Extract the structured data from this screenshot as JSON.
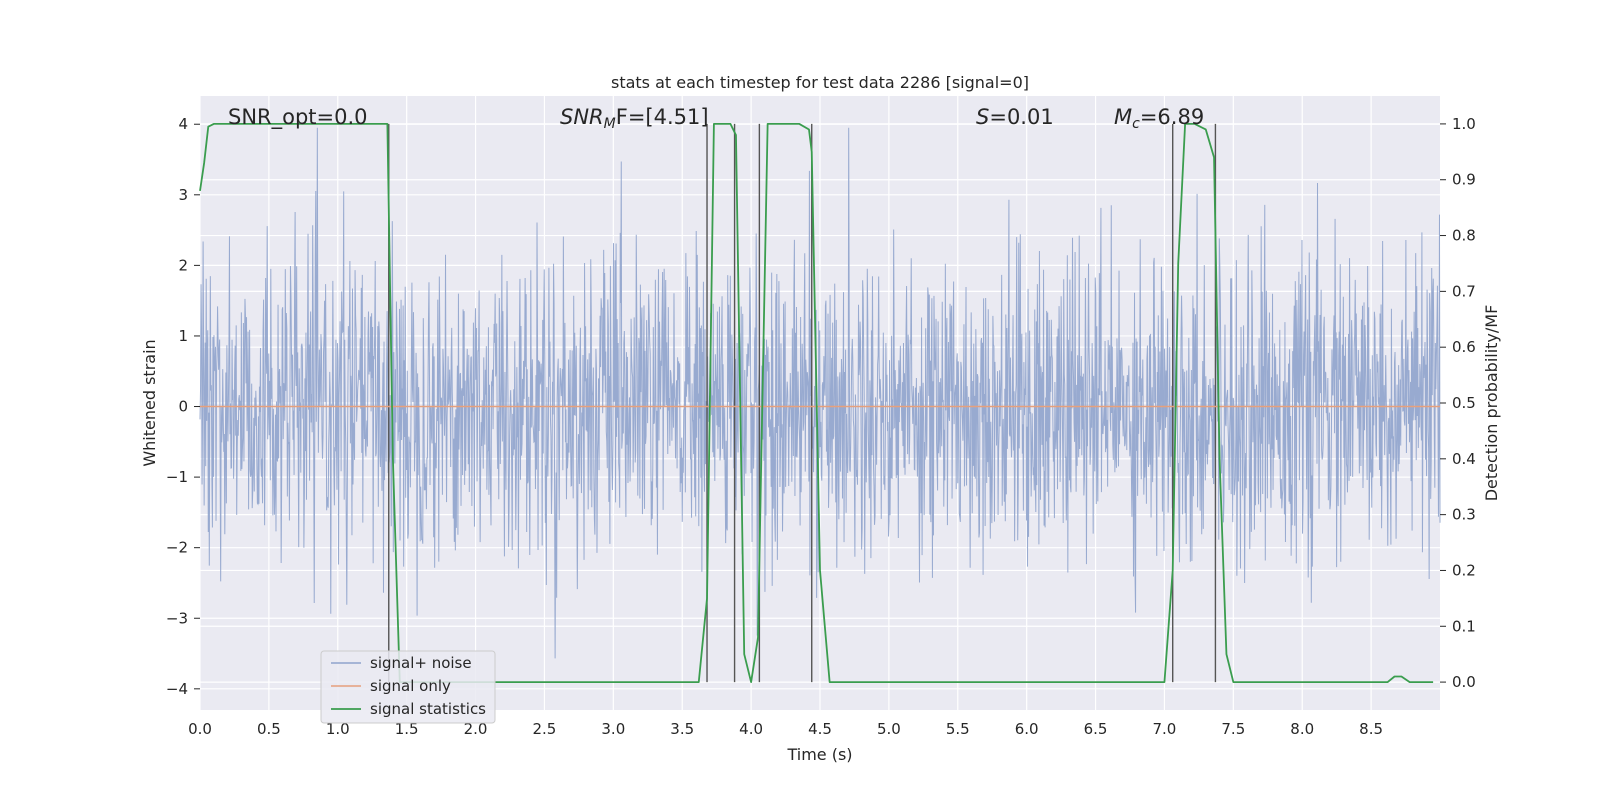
{
  "chart_data": {
    "type": "line",
    "title": "stats at each timestep for test data 2286 [signal=0]",
    "xlabel": "Time (s)",
    "ylabel": "Whitened strain",
    "y2label": "Detection probability/MF",
    "xlim": [
      0.0,
      9.0
    ],
    "ylim": [
      -4.3,
      4.4
    ],
    "y2lim": [
      -0.05,
      1.05
    ],
    "xticks": [
      "0.0",
      "0.5",
      "1.0",
      "1.5",
      "2.0",
      "2.5",
      "3.0",
      "3.5",
      "4.0",
      "4.5",
      "5.0",
      "5.5",
      "6.0",
      "6.5",
      "7.0",
      "7.5",
      "8.0",
      "8.5"
    ],
    "yticks": [
      "4",
      "3",
      "2",
      "1",
      "0",
      "−1",
      "−2",
      "−3",
      "−4"
    ],
    "y2ticks": [
      "1.0",
      "0.9",
      "0.8",
      "0.7",
      "0.6",
      "0.5",
      "0.4",
      "0.3",
      "0.2",
      "0.1",
      "0.0"
    ],
    "grid": true,
    "legend_position": "lower-left",
    "annotations": {
      "snr_opt": "SNR_opt=0.0",
      "snr_mf_prefix": "SNR",
      "snr_mf_sub": "M",
      "snr_mf_suffix": "F=[4.51]",
      "s_prefix": "S",
      "s_suffix": "=0.01",
      "mc_prefix": "M",
      "mc_sub": "c",
      "mc_suffix": "=6.89"
    },
    "vlines_x": [
      1.37,
      3.68,
      3.88,
      4.06,
      4.44,
      7.06,
      7.37
    ],
    "series": [
      {
        "name": "signal+ noise",
        "color": "#8fa3cc",
        "axis": "left",
        "description": "whitened strain noise, approximately Gaussian, amplitude about ±4"
      },
      {
        "name": "signal only",
        "color": "#e6a07c",
        "axis": "left",
        "x": [
          0.0,
          9.0
        ],
        "y": [
          0.0,
          0.0
        ]
      },
      {
        "name": "signal statistics",
        "color": "#3a9d4e",
        "axis": "right",
        "x": [
          0.0,
          0.03,
          0.06,
          0.1,
          0.15,
          0.5,
          1.0,
          1.3,
          1.36,
          1.4,
          1.45,
          2.0,
          2.4,
          3.0,
          3.5,
          3.62,
          3.68,
          3.73,
          3.8,
          3.85,
          3.89,
          3.95,
          4.0,
          4.05,
          4.07,
          4.12,
          4.2,
          4.35,
          4.42,
          4.44,
          4.5,
          4.57,
          4.7,
          5.0,
          6.0,
          6.5,
          7.0,
          7.06,
          7.1,
          7.15,
          7.22,
          7.3,
          7.36,
          7.4,
          7.45,
          7.5,
          8.0,
          8.5,
          8.62,
          8.67,
          8.72,
          8.78,
          8.85,
          8.95
        ],
        "y": [
          0.88,
          0.93,
          0.995,
          1.0,
          1.0,
          1.0,
          1.0,
          1.0,
          1.0,
          0.4,
          0.0,
          0.0,
          0.0,
          0.0,
          0.0,
          0.0,
          0.15,
          1.0,
          1.0,
          1.0,
          0.98,
          0.05,
          0.0,
          0.08,
          0.35,
          1.0,
          1.0,
          1.0,
          0.99,
          0.95,
          0.2,
          0.0,
          0.0,
          0.0,
          0.0,
          0.0,
          0.0,
          0.2,
          0.75,
          1.0,
          1.0,
          0.99,
          0.94,
          0.4,
          0.05,
          0.0,
          0.0,
          0.0,
          0.0,
          0.01,
          0.01,
          0.0,
          0.0,
          0.0
        ]
      }
    ]
  }
}
